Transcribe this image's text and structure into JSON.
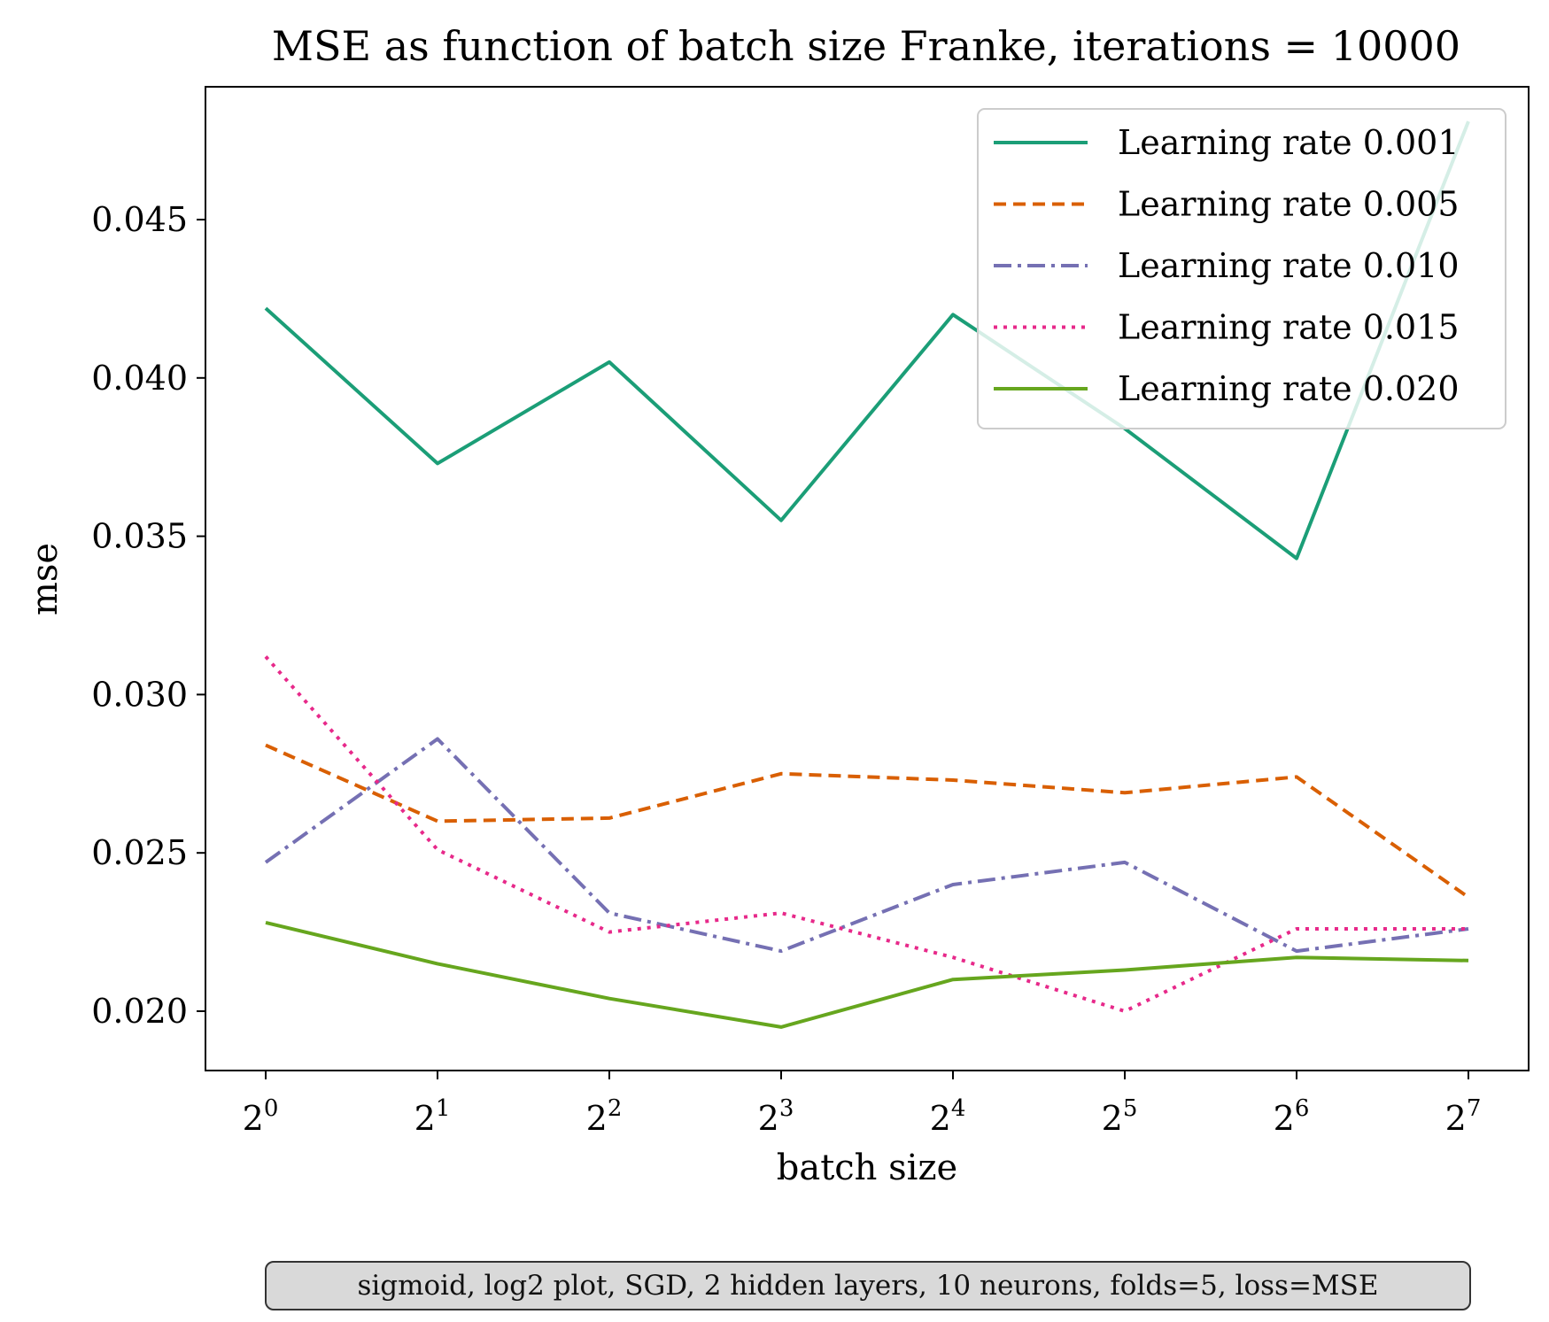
{
  "chart_data": {
    "type": "line",
    "title": "MSE as function of batch size Franke, iterations = 10000",
    "xlabel": "batch size",
    "ylabel": "mse",
    "x_scale": "log2",
    "x": [
      1,
      2,
      4,
      8,
      16,
      32,
      64,
      128
    ],
    "x_tick_labels": [
      {
        "base": "2",
        "exp": "0"
      },
      {
        "base": "2",
        "exp": "1"
      },
      {
        "base": "2",
        "exp": "2"
      },
      {
        "base": "2",
        "exp": "3"
      },
      {
        "base": "2",
        "exp": "4"
      },
      {
        "base": "2",
        "exp": "5"
      },
      {
        "base": "2",
        "exp": "6"
      },
      {
        "base": "2",
        "exp": "7"
      }
    ],
    "y_ticks": [
      "0.020",
      "0.025",
      "0.030",
      "0.035",
      "0.040",
      "0.045"
    ],
    "ylim": [
      0.0181,
      0.0491
    ],
    "grid": false,
    "legend_position": "top-right",
    "series": [
      {
        "name": "Learning rate 0.001",
        "color": "#1b9e77",
        "dash": "solid",
        "values": [
          0.0422,
          0.0373,
          0.0405,
          0.0355,
          0.042,
          0.0384,
          0.0343,
          0.0481
        ]
      },
      {
        "name": "Learning rate 0.005",
        "color": "#d95f02",
        "dash": "dashed",
        "values": [
          0.0284,
          0.026,
          0.0261,
          0.0275,
          0.0273,
          0.0269,
          0.0274,
          0.0236
        ]
      },
      {
        "name": "Learning rate 0.010",
        "color": "#7570b3",
        "dash": "dashdot",
        "values": [
          0.0247,
          0.0286,
          0.0231,
          0.0219,
          0.024,
          0.0247,
          0.0219,
          0.0226
        ]
      },
      {
        "name": "Learning rate 0.015",
        "color": "#e7298a",
        "dash": "dotted",
        "values": [
          0.0312,
          0.0251,
          0.0225,
          0.0231,
          0.0217,
          0.02,
          0.0226,
          0.0226
        ]
      },
      {
        "name": "Learning rate 0.020",
        "color": "#66a61e",
        "dash": "solid",
        "values": [
          0.0228,
          0.0215,
          0.0204,
          0.0195,
          0.021,
          0.0213,
          0.0217,
          0.0216
        ]
      }
    ]
  },
  "caption": "sigmoid, log2 plot, SGD, 2 hidden layers, 10 neurons, folds=5, loss=MSE"
}
